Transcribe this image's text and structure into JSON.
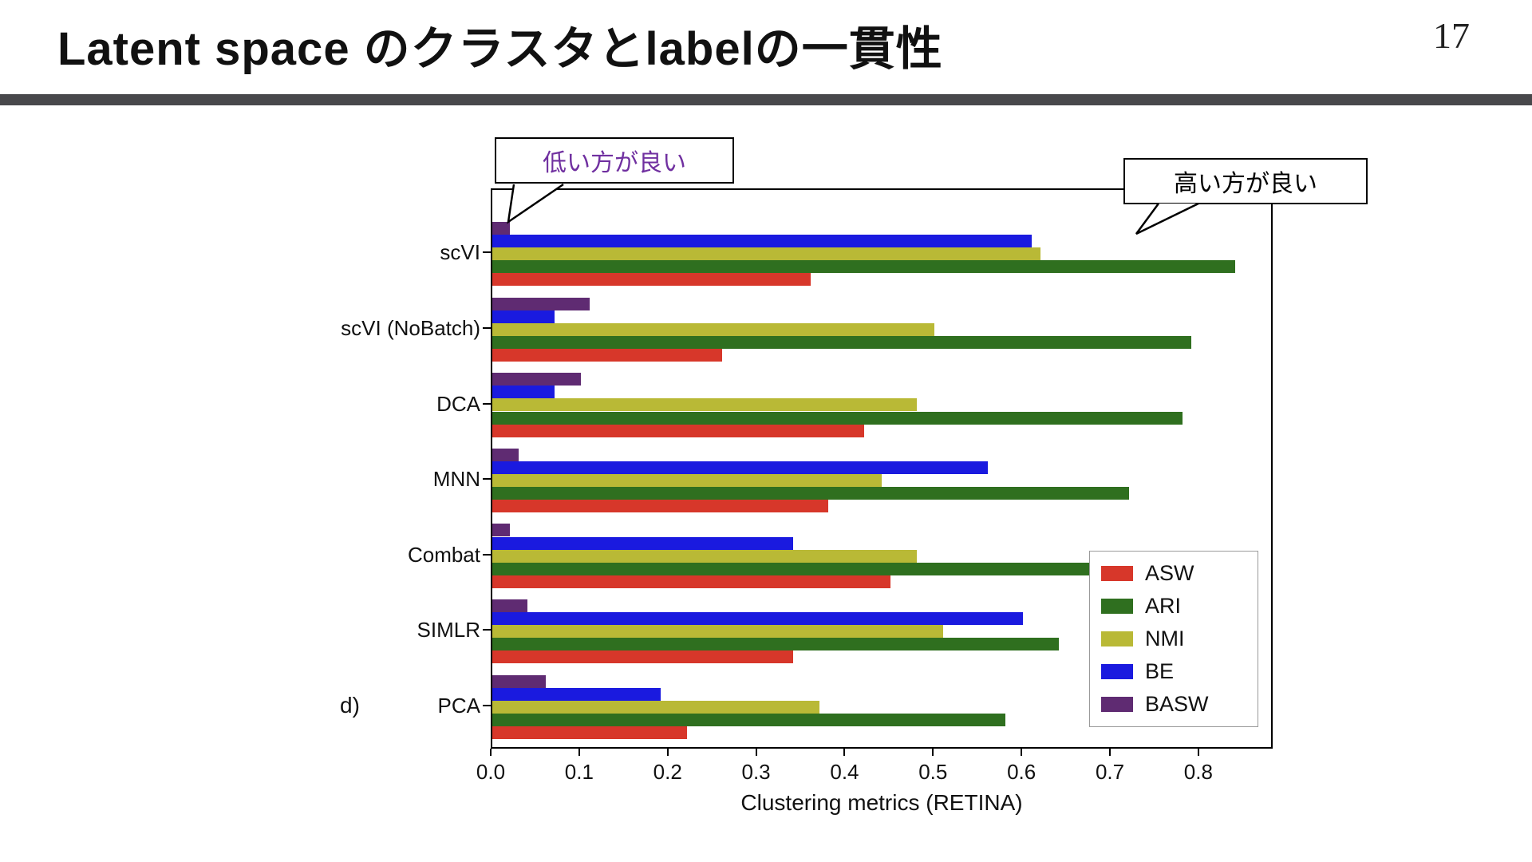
{
  "slide": {
    "title": "Latent space のクラスタとlabelの一貫性",
    "page_number": "17"
  },
  "annotations": {
    "lower_better": "低い方が良い",
    "higher_better": "高い方が良い",
    "panel_label": "d)"
  },
  "chart_data": {
    "type": "bar",
    "orientation": "horizontal",
    "title": "",
    "xlabel": "Clustering metrics (RETINA)",
    "categories": [
      "scVI",
      "scVI (NoBatch)",
      "DCA",
      "MNN",
      "Combat",
      "SIMLR",
      "PCA"
    ],
    "series": [
      {
        "name": "ASW",
        "color": "#d7372a",
        "values": [
          0.36,
          0.26,
          0.42,
          0.38,
          0.45,
          0.34,
          0.22
        ]
      },
      {
        "name": "ARI",
        "color": "#2f6f1f",
        "values": [
          0.84,
          0.79,
          0.78,
          0.72,
          0.79,
          0.64,
          0.58
        ]
      },
      {
        "name": "NMI",
        "color": "#b9b936",
        "values": [
          0.62,
          0.5,
          0.48,
          0.44,
          0.48,
          0.51,
          0.37
        ]
      },
      {
        "name": "BE",
        "color": "#1a1adf",
        "values": [
          0.61,
          0.07,
          0.07,
          0.56,
          0.34,
          0.6,
          0.19
        ]
      },
      {
        "name": "BASW",
        "color": "#5f2b72",
        "values": [
          0.02,
          0.11,
          0.1,
          0.03,
          0.02,
          0.04,
          0.06
        ]
      }
    ],
    "bar_order_top_to_bottom": [
      "BASW",
      "BE",
      "NMI",
      "ARI",
      "ASW"
    ],
    "xticks": [
      0.0,
      0.1,
      0.2,
      0.3,
      0.4,
      0.5,
      0.6,
      0.7,
      0.8
    ],
    "xlim": [
      0,
      0.884
    ],
    "legend": [
      "ASW",
      "ARI",
      "NMI",
      "BE",
      "BASW"
    ],
    "legend_position": "lower right",
    "grid": false
  }
}
